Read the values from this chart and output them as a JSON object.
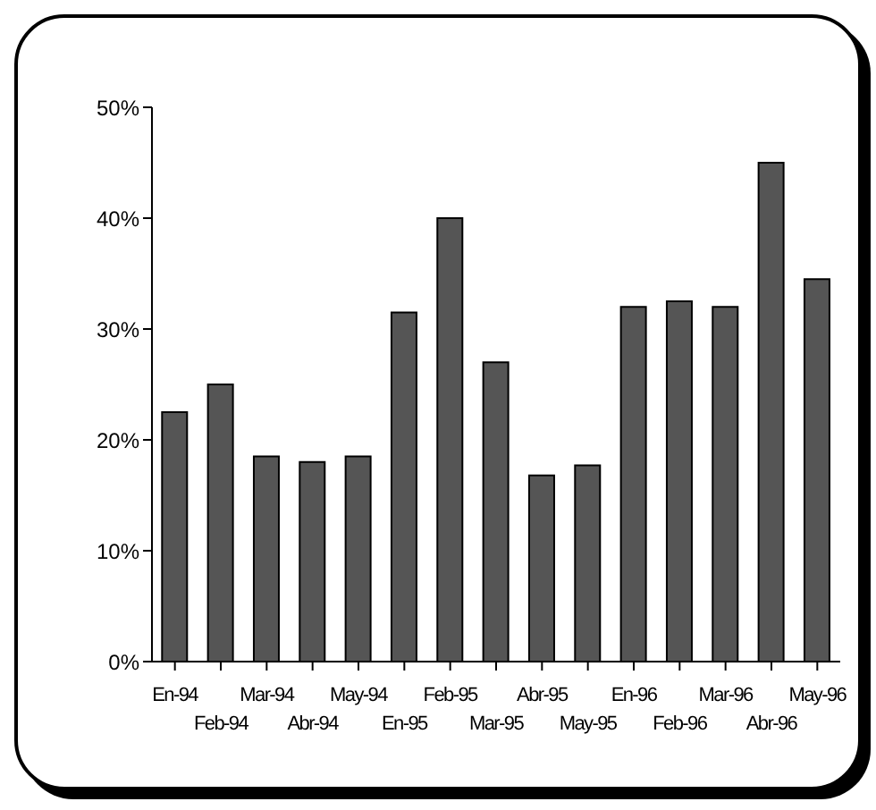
{
  "chart_data": {
    "type": "bar",
    "categories": [
      "En-94",
      "Feb-94",
      "Mar-94",
      "Abr-94",
      "May-94",
      "En-95",
      "Feb-95",
      "Mar-95",
      "Abr-95",
      "May-95",
      "En-96",
      "Feb-96",
      "Mar-96",
      "Abr-96",
      "May-96"
    ],
    "values": [
      22.5,
      25,
      18.5,
      18,
      18.5,
      31.5,
      40,
      27,
      16.8,
      17.7,
      32,
      32.5,
      32,
      45,
      34.5
    ],
    "color": "#555555",
    "ylim": [
      0,
      50
    ],
    "yticks": [
      {
        "value": 0,
        "label": "0%"
      },
      {
        "value": 10,
        "label": "10%"
      },
      {
        "value": 20,
        "label": "20%"
      },
      {
        "value": 30,
        "label": "30%"
      },
      {
        "value": 40,
        "label": "40%"
      },
      {
        "value": 50,
        "label": "50%"
      }
    ],
    "grid": false,
    "legend": false
  }
}
